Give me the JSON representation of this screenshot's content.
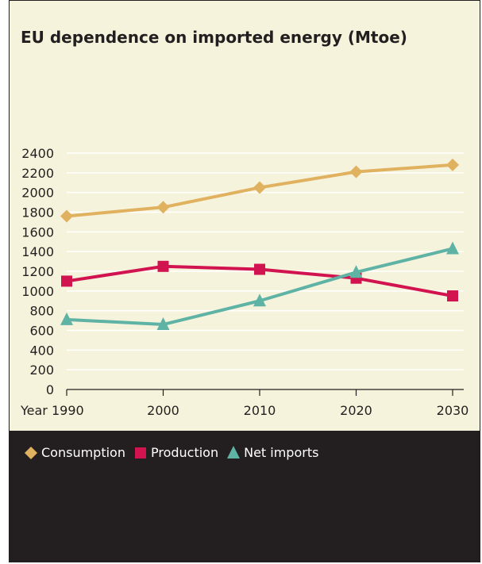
{
  "chart_data": {
    "type": "line",
    "title": "EU dependence on imported energy (Mtoe)",
    "x": [
      "Year 1990",
      "2000",
      "2010",
      "2020",
      "2030"
    ],
    "ylim": [
      0,
      2400
    ],
    "yticks": [
      0,
      200,
      400,
      600,
      800,
      1000,
      1200,
      1400,
      1600,
      1800,
      2000,
      2200,
      2400
    ],
    "grid": true,
    "legend_position": "bottom",
    "series": [
      {
        "name": "Consumption",
        "values": [
          1760,
          1850,
          2050,
          2210,
          2280
        ],
        "color": "#e0b15f",
        "marker": "diamond"
      },
      {
        "name": "Production",
        "values": [
          1100,
          1250,
          1220,
          1130,
          950
        ],
        "color": "#d1134f",
        "marker": "square"
      },
      {
        "name": "Net imports",
        "values": [
          710,
          660,
          900,
          1190,
          1430
        ],
        "color": "#5fb3a5",
        "marker": "triangle"
      }
    ]
  }
}
